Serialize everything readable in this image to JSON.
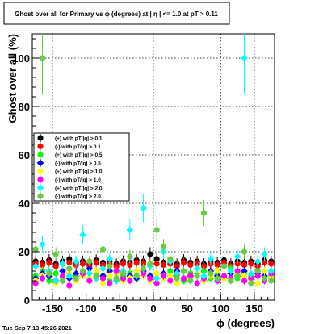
{
  "chart_data": {
    "type": "scatter",
    "title": "Ghost over all for Primary vs ϕ (degrees) at |  η | <= 1.0 at pT > 0.11",
    "xlabel": "ϕ (degrees)",
    "ylabel": "Ghost over all (%)",
    "xlim": [
      -180,
      180
    ],
    "ylim": [
      0,
      110
    ],
    "xticks": [
      "-150",
      "-100",
      "-50",
      "0",
      "50",
      "100",
      "150"
    ],
    "xtick_values": [
      -150,
      -100,
      -50,
      0,
      50,
      100,
      150
    ],
    "yticks": [
      "0",
      "20",
      "40",
      "60",
      "80",
      "100"
    ],
    "ytick_values": [
      0,
      20,
      40,
      60,
      80,
      100
    ],
    "grid": true,
    "legend_position": "left-middle",
    "footer": "Tue Sep  7 13:45:26 2021",
    "series": [
      {
        "name": "(+) with pT/|q| > 0.1",
        "color": "#000000",
        "x": [
          -175,
          -165,
          -155,
          -145,
          -135,
          -125,
          -115,
          -105,
          -95,
          -85,
          -75,
          -65,
          -55,
          -45,
          -35,
          -25,
          -15,
          -5,
          5,
          15,
          25,
          35,
          45,
          55,
          65,
          75,
          85,
          95,
          105,
          115,
          125,
          135,
          145,
          155,
          165,
          175
        ],
        "y": [
          16,
          15.5,
          16.5,
          15,
          16,
          17,
          15.5,
          16,
          15,
          16.5,
          15.5,
          16,
          15,
          16,
          15.5,
          16.5,
          16,
          19,
          17,
          15.5,
          16,
          15,
          16.5,
          15.5,
          16,
          15,
          16,
          15.5,
          16.5,
          15,
          16,
          15.5,
          16,
          15,
          16.5,
          16
        ]
      },
      {
        "name": "(-) with pT/|q| > 0.1",
        "color": "#ff0000",
        "x": [
          -175,
          -165,
          -155,
          -145,
          -135,
          -125,
          -115,
          -105,
          -95,
          -85,
          -75,
          -65,
          -55,
          -45,
          -35,
          -25,
          -15,
          -5,
          5,
          15,
          25,
          35,
          45,
          55,
          65,
          75,
          85,
          95,
          105,
          115,
          125,
          135,
          145,
          155,
          165,
          175
        ],
        "y": [
          15,
          14.5,
          15.5,
          14,
          15,
          15.5,
          14.5,
          15,
          14,
          15.5,
          14.5,
          15,
          14,
          15,
          14.5,
          15.5,
          15,
          14.5,
          15,
          14.5,
          15,
          14,
          15.5,
          14.5,
          15,
          14,
          15,
          14.5,
          15.5,
          14,
          15,
          14.5,
          15,
          14,
          15.5,
          15
        ]
      },
      {
        "name": "(+) with pT/|q| > 0.5",
        "color": "#00ff00",
        "x": [
          -175,
          -165,
          -155,
          -145,
          -135,
          -125,
          -115,
          -105,
          -95,
          -85,
          -75,
          -65,
          -55,
          -45,
          -35,
          -25,
          -15,
          -5,
          5,
          15,
          25,
          35,
          45,
          55,
          65,
          75,
          85,
          95,
          105,
          115,
          125,
          135,
          145,
          155,
          165,
          175
        ],
        "y": [
          10,
          12,
          8,
          11,
          9,
          13,
          10,
          12,
          9,
          11,
          10,
          8,
          12,
          10,
          11,
          9,
          13,
          10,
          11,
          9,
          12,
          10,
          8,
          11,
          10,
          12,
          9,
          11,
          10,
          13,
          9,
          11,
          10,
          12,
          8,
          10
        ]
      },
      {
        "name": "(-) with pT/|q| > 0.5",
        "color": "#0000ff",
        "x": [
          -175,
          -165,
          -155,
          -145,
          -135,
          -125,
          -115,
          -105,
          -95,
          -85,
          -75,
          -65,
          -55,
          -45,
          -35,
          -25,
          -15,
          -5,
          5,
          15,
          25,
          35,
          45,
          55,
          65,
          75,
          85,
          95,
          105,
          115,
          125,
          135,
          145,
          155,
          165,
          175
        ],
        "y": [
          9,
          11,
          10,
          8,
          12,
          9,
          11,
          10,
          13,
          9,
          10,
          12,
          8,
          11,
          10,
          9,
          12,
          10,
          9,
          11,
          10,
          12,
          9,
          10,
          11,
          8,
          12,
          10,
          9,
          11,
          10,
          12,
          9,
          11,
          10,
          9
        ]
      },
      {
        "name": "(+) with pT/|q| > 1.0",
        "color": "#ffff00",
        "x": [
          -175,
          -165,
          -155,
          -145,
          -135,
          -125,
          -115,
          -105,
          -95,
          -85,
          -75,
          -65,
          -55,
          -45,
          -35,
          -25,
          -15,
          -5,
          5,
          15,
          25,
          35,
          45,
          55,
          65,
          75,
          85,
          95,
          105,
          115,
          125,
          135,
          145,
          155,
          165,
          175
        ],
        "y": [
          8,
          10,
          12,
          7,
          9,
          11,
          8,
          10,
          9,
          12,
          7,
          10,
          11,
          8,
          9,
          12,
          10,
          8,
          11,
          9,
          10,
          7,
          12,
          9,
          11,
          8,
          10,
          12,
          9,
          8,
          11,
          10,
          9,
          7,
          12,
          9
        ]
      },
      {
        "name": "(-) with pT/|q| > 1.0",
        "color": "#ff00ff",
        "x": [
          -175,
          -165,
          -155,
          -145,
          -135,
          -125,
          -115,
          -105,
          -95,
          -85,
          -75,
          -65,
          -55,
          -45,
          -35,
          -25,
          -15,
          -5,
          5,
          15,
          25,
          35,
          45,
          55,
          65,
          75,
          85,
          95,
          105,
          115,
          125,
          135,
          145,
          155,
          165,
          175
        ],
        "y": [
          7,
          9,
          11,
          8,
          10,
          6,
          9,
          11,
          8,
          10,
          9,
          7,
          12,
          9,
          8,
          10,
          11,
          9,
          7,
          10,
          8,
          11,
          9,
          10,
          7,
          9,
          11,
          8,
          10,
          9,
          12,
          8,
          9,
          10,
          8,
          11
        ]
      },
      {
        "name": "(+) with pT/|q| > 2.0",
        "color": "#00ffff",
        "x": [
          -175,
          -165,
          -155,
          -145,
          -135,
          -125,
          -115,
          -105,
          -95,
          -85,
          -75,
          -65,
          -55,
          -45,
          -35,
          -25,
          -15,
          -5,
          5,
          15,
          25,
          35,
          45,
          55,
          65,
          75,
          85,
          95,
          105,
          115,
          125,
          135,
          145,
          155,
          165,
          175
        ],
        "y": [
          14,
          23,
          12,
          8,
          15,
          10,
          16,
          27,
          11,
          9,
          13,
          17,
          8,
          12,
          29,
          10,
          38,
          14,
          9,
          20,
          16,
          11,
          12,
          8,
          13,
          10,
          17,
          9,
          14,
          12,
          18,
          100,
          11,
          16,
          19,
          12
        ]
      },
      {
        "name": "(-) with pT/|q| > 2.0",
        "color": "#66cc44",
        "x": [
          -175,
          -165,
          -155,
          -145,
          -135,
          -125,
          -115,
          -105,
          -95,
          -85,
          -75,
          -65,
          -55,
          -45,
          -35,
          -25,
          -15,
          -5,
          5,
          15,
          25,
          35,
          45,
          55,
          65,
          75,
          85,
          95,
          105,
          115,
          125,
          135,
          145,
          155,
          165,
          175
        ],
        "y": [
          21,
          100,
          11,
          19,
          8,
          13,
          9,
          12,
          16,
          10,
          21,
          14,
          9,
          11,
          18,
          10,
          13,
          15,
          29,
          22,
          17,
          9,
          12,
          8,
          10,
          36,
          11,
          9,
          14,
          8,
          10,
          20,
          7,
          12,
          9,
          8
        ]
      }
    ]
  }
}
